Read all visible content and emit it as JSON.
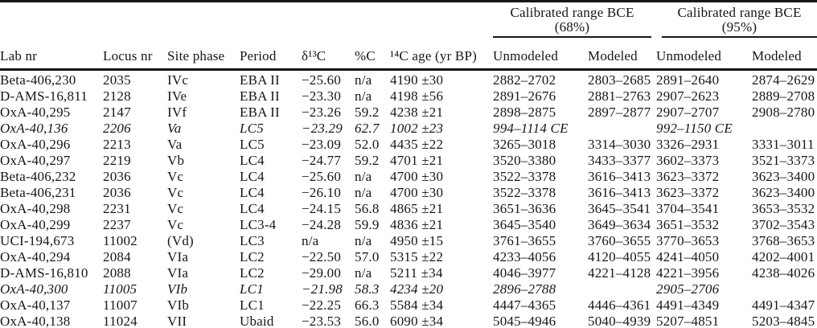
{
  "table": {
    "group_headers": [
      {
        "title": "Calibrated range BCE",
        "subtitle": "(68%)"
      },
      {
        "title": "Calibrated range BCE",
        "subtitle": "(95%)"
      }
    ],
    "columns": [
      "Lab nr",
      "Locus nr",
      "Site phase",
      "Period",
      "δ¹³C",
      "%C",
      "¹⁴C age (yr BP)",
      "Unmodeled",
      "Modeled",
      "Unmodeled",
      "Modeled"
    ],
    "rows": [
      {
        "italic": false,
        "cells": [
          "Beta-406,230",
          "2035",
          "IVc",
          "EBA II",
          "−25.60",
          "n/a",
          "4190 ±30",
          "2882–2702",
          "2803–2685",
          "2891–2640",
          "2874–2629"
        ]
      },
      {
        "italic": false,
        "cells": [
          "D-AMS-16,811",
          "2128",
          "IVe",
          "EBA II",
          "−23.30",
          "n/a",
          "4198 ±56",
          "2891–2676",
          "2881–2763",
          "2907–2623",
          "2889–2708"
        ]
      },
      {
        "italic": false,
        "cells": [
          "OxA-40,295",
          "2147",
          "IVf",
          "EBA II",
          "−23.26",
          "59.2",
          "4238 ±21",
          "2898–2875",
          "2897–2877",
          "2907–2707",
          "2908–2780"
        ]
      },
      {
        "italic": true,
        "cells": [
          "OxA-40,136",
          "2206",
          "Va",
          "LC5",
          "−23.29",
          "62.7",
          "1002 ±23",
          "994–1114 CE",
          "",
          "992–1150 CE",
          ""
        ]
      },
      {
        "italic": false,
        "cells": [
          "OxA-40,296",
          "2213",
          "Va",
          "LC5",
          "−23.09",
          "52.0",
          "4435 ±22",
          "3265–3018",
          "3314–3030",
          "3326–2931",
          "3331–3011"
        ]
      },
      {
        "italic": false,
        "cells": [
          "OxA-40,297",
          "2219",
          "Vb",
          "LC4",
          "−24.77",
          "59.2",
          "4701 ±21",
          "3520–3380",
          "3433–3377",
          "3602–3373",
          "3521–3373"
        ]
      },
      {
        "italic": false,
        "cells": [
          "Beta-406,232",
          "2036",
          "Vc",
          "LC4",
          "−25.60",
          "n/a",
          "4700 ±30",
          "3522–3378",
          "3616–3413",
          "3623–3372",
          "3623–3400"
        ]
      },
      {
        "italic": false,
        "cells": [
          "Beta-406,231",
          "2036",
          "Vc",
          "LC4",
          "−26.10",
          "n/a",
          "4700 ±30",
          "3522–3378",
          "3616–3413",
          "3623–3372",
          "3623–3400"
        ]
      },
      {
        "italic": false,
        "cells": [
          "OxA-40,298",
          "2231",
          "Vc",
          "LC4",
          "−24.15",
          "56.8",
          "4865 ±21",
          "3651–3636",
          "3645–3541",
          "3704–3541",
          "3653–3532"
        ]
      },
      {
        "italic": false,
        "cells": [
          "OxA-40,299",
          "2237",
          "Vc",
          "LC3-4",
          "−24.28",
          "59.9",
          "4836 ±21",
          "3645–3540",
          "3649–3634",
          "3651–3532",
          "3702–3543"
        ]
      },
      {
        "italic": false,
        "cells": [
          "UCI-194,673",
          "11002",
          "(Vd)",
          "LC3",
          "n/a",
          "n/a",
          "4950 ±15",
          "3761–3655",
          "3760–3655",
          "3770–3653",
          "3768–3653"
        ]
      },
      {
        "italic": false,
        "cells": [
          "OxA-40,294",
          "2084",
          "VIa",
          "LC2",
          "−22.50",
          "57.0",
          "5315 ±22",
          "4233–4056",
          "4120–4055",
          "4241–4050",
          "4202–4001"
        ]
      },
      {
        "italic": false,
        "cells": [
          "D-AMS-16,810",
          "2088",
          "VIa",
          "LC2",
          "−29.00",
          "n/a",
          "5211 ±34",
          "4046–3977",
          "4221–4128",
          "4221–3956",
          "4238–4026"
        ]
      },
      {
        "italic": true,
        "cells": [
          "OxA-40,300",
          "11005",
          "VIb",
          "LC1",
          "−21.98",
          "58.3",
          "4234 ±20",
          "2896–2788",
          "",
          "2905–2706",
          ""
        ]
      },
      {
        "italic": false,
        "cells": [
          "OxA-40,137",
          "11007",
          "VIb",
          "LC1",
          "−22.25",
          "66.3",
          "5584 ±34",
          "4447–4365",
          "4446–4361",
          "4491–4349",
          "4491–4347"
        ]
      },
      {
        "italic": false,
        "cells": [
          "OxA-40,138",
          "11024",
          "VII",
          "Ubaid",
          "−23.53",
          "56.0",
          "6090 ±34",
          "5045–4946",
          "5040–4939",
          "5207–4851",
          "5203–4845"
        ]
      }
    ]
  }
}
